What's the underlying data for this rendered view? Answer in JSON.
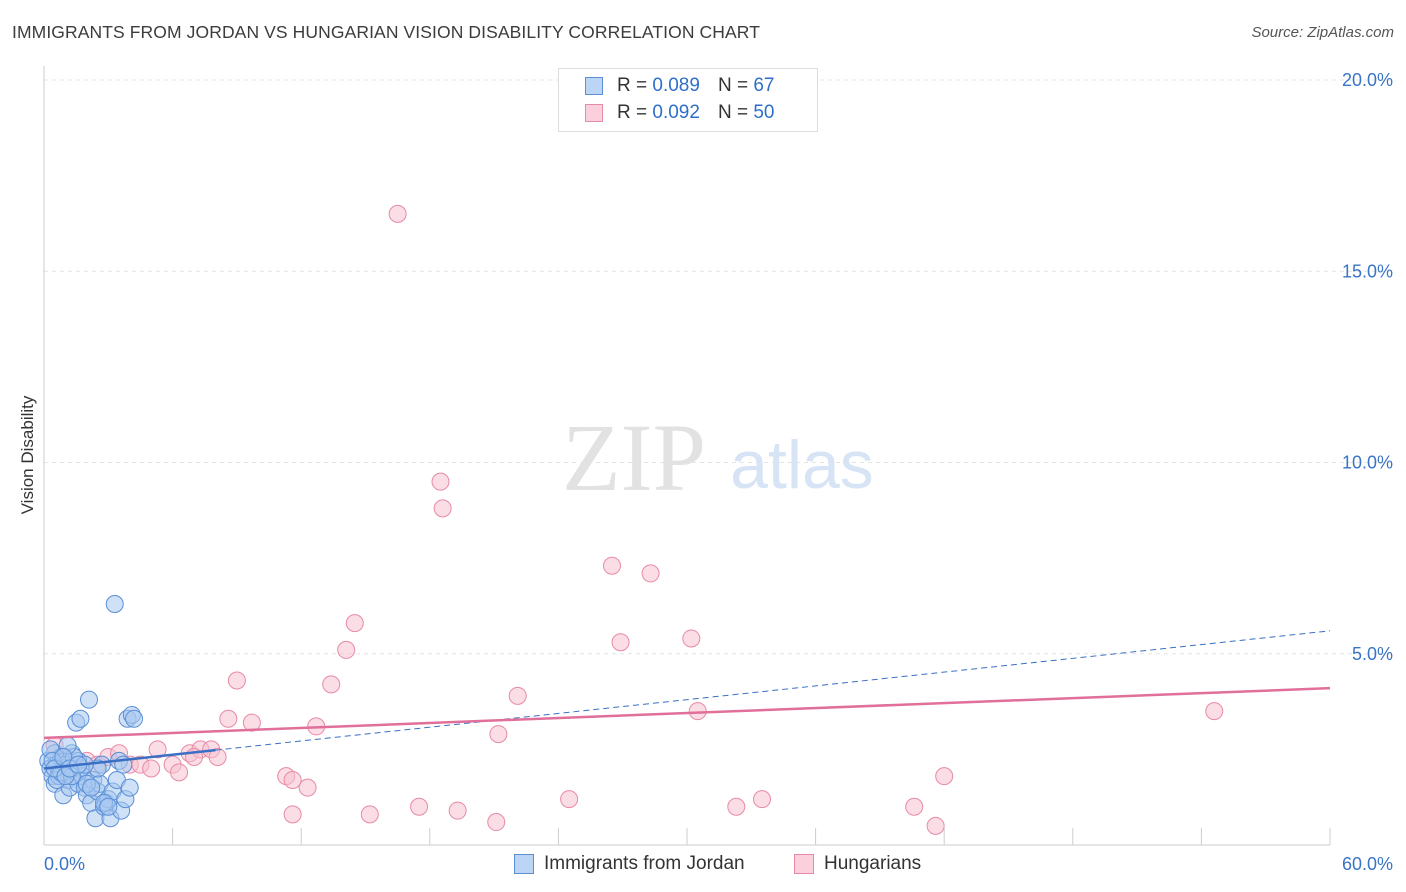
{
  "title": "IMMIGRANTS FROM JORDAN VS HUNGARIAN VISION DISABILITY CORRELATION CHART",
  "source": "Source: ZipAtlas.com",
  "watermark": {
    "zip": "ZIP",
    "atlas": "atlas"
  },
  "legend": {
    "blue": {
      "r_label": "R =",
      "r_value": "0.089",
      "n_label": "N =",
      "n_value": "67"
    },
    "pink": {
      "r_label": "R =",
      "r_value": "0.092",
      "n_label": "N =",
      "n_value": "50"
    }
  },
  "colors": {
    "blue_fill": "#a8c8f0",
    "blue_stroke": "#5b8fd6",
    "blue_line": "#3a6fc4",
    "pink_fill": "#f6c1d0",
    "pink_stroke": "#e88aa6",
    "pink_line": "#e0709a",
    "tick_label": "#3a74c8",
    "grid": "#e4e4e4"
  },
  "chart_data": {
    "type": "scatter",
    "title": "IMMIGRANTS FROM JORDAN VS HUNGARIAN VISION DISABILITY CORRELATION CHART",
    "ylabel": "Vision Disability",
    "xlabel": "",
    "xlim": [
      0,
      60
    ],
    "ylim": [
      0,
      20
    ],
    "x_tick_labels": [
      "0.0%",
      "60.0%"
    ],
    "y_ticks": [
      5,
      10,
      15,
      20
    ],
    "y_tick_labels": [
      "5.0%",
      "10.0%",
      "15.0%",
      "20.0%"
    ],
    "grid": true,
    "legend_position": "top-center",
    "series": [
      {
        "name": "Immigrants from Jordan",
        "color": "blue",
        "points": [
          [
            0.2,
            2.2
          ],
          [
            0.3,
            2.0
          ],
          [
            0.4,
            1.8
          ],
          [
            0.5,
            2.4
          ],
          [
            0.6,
            2.1
          ],
          [
            0.7,
            1.9
          ],
          [
            0.8,
            2.3
          ],
          [
            0.9,
            2.0
          ],
          [
            1.0,
            2.2
          ],
          [
            1.1,
            1.7
          ],
          [
            1.2,
            2.1
          ],
          [
            1.3,
            2.4
          ],
          [
            1.4,
            2.0
          ],
          [
            1.5,
            1.9
          ],
          [
            1.6,
            2.2
          ],
          [
            1.7,
            2.0
          ],
          [
            0.3,
            2.5
          ],
          [
            0.5,
            1.6
          ],
          [
            0.7,
            1.8
          ],
          [
            0.9,
            1.3
          ],
          [
            1.0,
            2.1
          ],
          [
            1.2,
            1.5
          ],
          [
            1.4,
            2.3
          ],
          [
            1.5,
            3.2
          ],
          [
            1.6,
            1.6
          ],
          [
            1.8,
            1.8
          ],
          [
            1.9,
            1.5
          ],
          [
            2.0,
            1.3
          ],
          [
            2.1,
            3.8
          ],
          [
            2.2,
            1.1
          ],
          [
            2.3,
            1.7
          ],
          [
            2.4,
            0.7
          ],
          [
            2.5,
            1.4
          ],
          [
            2.6,
            1.6
          ],
          [
            2.7,
            2.1
          ],
          [
            2.8,
            1.0
          ],
          [
            2.9,
            1.1
          ],
          [
            3.0,
            1.2
          ],
          [
            3.1,
            0.7
          ],
          [
            3.2,
            1.4
          ],
          [
            3.4,
            1.7
          ],
          [
            3.5,
            2.2
          ],
          [
            3.6,
            0.9
          ],
          [
            3.7,
            2.1
          ],
          [
            3.8,
            1.2
          ],
          [
            3.9,
            3.3
          ],
          [
            4.0,
            1.5
          ],
          [
            4.1,
            3.4
          ],
          [
            4.2,
            3.3
          ],
          [
            3.3,
            6.3
          ],
          [
            1.1,
            2.6
          ],
          [
            0.4,
            2.2
          ],
          [
            0.6,
            1.7
          ],
          [
            0.8,
            1.9
          ],
          [
            1.3,
            1.8
          ],
          [
            1.7,
            3.3
          ],
          [
            2.0,
            1.6
          ],
          [
            2.5,
            2.0
          ],
          [
            2.8,
            1.1
          ],
          [
            0.5,
            2.0
          ],
          [
            1.0,
            1.8
          ],
          [
            1.9,
            2.1
          ],
          [
            2.2,
            1.5
          ],
          [
            3.0,
            1.0
          ],
          [
            0.9,
            2.3
          ],
          [
            1.2,
            2.0
          ],
          [
            1.6,
            2.1
          ]
        ]
      },
      {
        "name": "Hungarians",
        "color": "pink",
        "points": [
          [
            0.5,
            2.6
          ],
          [
            1.0,
            2.3
          ],
          [
            1.5,
            2.1
          ],
          [
            2.0,
            2.2
          ],
          [
            2.5,
            2.1
          ],
          [
            3.0,
            2.3
          ],
          [
            3.5,
            2.4
          ],
          [
            4.0,
            2.1
          ],
          [
            4.5,
            2.1
          ],
          [
            5.0,
            2.0
          ],
          [
            5.3,
            2.5
          ],
          [
            6.0,
            2.1
          ],
          [
            6.3,
            1.9
          ],
          [
            6.8,
            2.4
          ],
          [
            7.3,
            2.5
          ],
          [
            7.8,
            2.5
          ],
          [
            8.1,
            2.3
          ],
          [
            8.6,
            3.3
          ],
          [
            9.0,
            4.3
          ],
          [
            9.7,
            3.2
          ],
          [
            11.3,
            1.8
          ],
          [
            11.6,
            1.7
          ],
          [
            11.6,
            0.8
          ],
          [
            12.3,
            1.5
          ],
          [
            12.7,
            3.1
          ],
          [
            13.4,
            4.2
          ],
          [
            14.1,
            5.1
          ],
          [
            14.5,
            5.8
          ],
          [
            15.2,
            0.8
          ],
          [
            16.5,
            16.5
          ],
          [
            17.5,
            1.0
          ],
          [
            18.5,
            9.5
          ],
          [
            18.6,
            8.8
          ],
          [
            19.3,
            0.9
          ],
          [
            21.1,
            0.6
          ],
          [
            21.2,
            2.9
          ],
          [
            22.1,
            3.9
          ],
          [
            24.5,
            1.2
          ],
          [
            26.5,
            7.3
          ],
          [
            26.9,
            5.3
          ],
          [
            28.3,
            7.1
          ],
          [
            30.2,
            5.4
          ],
          [
            30.5,
            3.5
          ],
          [
            32.3,
            1.0
          ],
          [
            33.5,
            1.2
          ],
          [
            40.6,
            1.0
          ],
          [
            41.6,
            0.5
          ],
          [
            42.0,
            1.8
          ],
          [
            54.6,
            3.5
          ],
          [
            7.0,
            2.3
          ]
        ]
      }
    ],
    "trend_lines": [
      {
        "series": "Immigrants from Jordan",
        "style": "solid-then-dashed",
        "x": [
          0,
          60
        ],
        "y": [
          2.0,
          5.6
        ],
        "solid_until_x": 8
      },
      {
        "series": "Hungarians",
        "style": "solid",
        "x": [
          0,
          60
        ],
        "y": [
          2.8,
          4.1
        ]
      }
    ]
  },
  "bottom_legend": {
    "blue_label": "Immigrants from Jordan",
    "pink_label": "Hungarians"
  }
}
